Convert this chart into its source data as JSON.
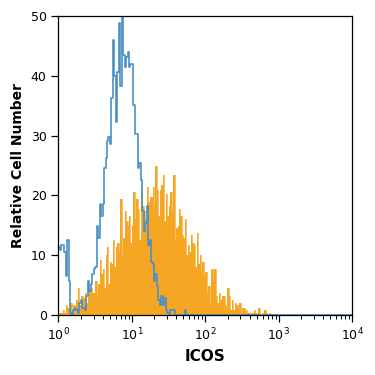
{
  "title": "",
  "xlabel": "ICOS",
  "ylabel": "Relative Cell Number",
  "xlim_log": [
    0,
    4
  ],
  "ylim": [
    0,
    50
  ],
  "yticks": [
    0,
    10,
    20,
    30,
    40,
    50
  ],
  "blue_color": "#4a90c4",
  "orange_color": "#f5a623",
  "background_color": "#ffffff",
  "xlabel_fontsize": 11,
  "ylabel_fontsize": 10,
  "tick_fontsize": 9,
  "blue_peak": 50,
  "orange_peak": 25,
  "blue_log_mean": 0.875,
  "blue_log_std": 0.22,
  "orange_log_mean": 1.32,
  "orange_log_std": 0.48,
  "n_bins": 200,
  "blue_n": 3000,
  "orange_n": 3000,
  "blue_low_n": 200,
  "seed": 42
}
